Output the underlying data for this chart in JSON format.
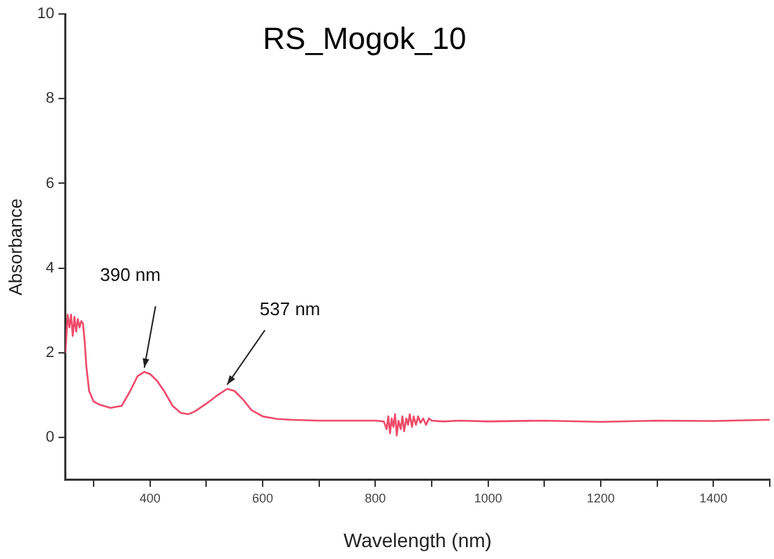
{
  "chart_data": {
    "type": "line",
    "title": "RS_Mogok_10",
    "xlabel": "Wavelength (nm)",
    "ylabel": "Absorbance",
    "xlim": [
      250,
      1500
    ],
    "ylim": [
      -1,
      10
    ],
    "xticks": [
      {
        "value": 300,
        "label": null
      },
      400,
      {
        "value": 500,
        "label": null
      },
      600,
      {
        "value": 700,
        "label": null
      },
      800,
      {
        "value": 900,
        "label": null
      },
      1000,
      {
        "value": 1100,
        "label": null
      },
      1200,
      {
        "value": 1300,
        "label": null
      },
      1400,
      {
        "value": 1500,
        "label": null
      }
    ],
    "yticks": [
      0,
      2,
      4,
      6,
      8,
      10
    ],
    "grid": false,
    "legend": false,
    "marker": "none",
    "line_style": "solid",
    "annotations": [
      {
        "text": "390 nm",
        "x": 390,
        "y": 1.55
      },
      {
        "text": "537 nm",
        "x": 537,
        "y": 1.15
      }
    ],
    "series": [
      {
        "color": "#f04a6a",
        "x": [
          250,
          254,
          257,
          260,
          263,
          266,
          269,
          272,
          275,
          278,
          281,
          284,
          287,
          292,
          300,
          310,
          330,
          350,
          365,
          378,
          390,
          400,
          412,
          425,
          440,
          455,
          468,
          480,
          500,
          520,
          537,
          550,
          565,
          580,
          600,
          625,
          650,
          700,
          750,
          800,
          815,
          820,
          823,
          826,
          829,
          832,
          835,
          838,
          841,
          845,
          848,
          851,
          855,
          858,
          861,
          865,
          868,
          872,
          876,
          880,
          885,
          890,
          895,
          900,
          920,
          950,
          1000,
          1100,
          1200,
          1300,
          1400,
          1500
        ],
        "values": [
          2.0,
          2.9,
          2.6,
          2.9,
          2.4,
          2.85,
          2.5,
          2.8,
          2.6,
          2.75,
          2.7,
          2.3,
          1.7,
          1.1,
          0.85,
          0.78,
          0.7,
          0.75,
          1.1,
          1.45,
          1.55,
          1.5,
          1.35,
          1.1,
          0.75,
          0.58,
          0.55,
          0.62,
          0.8,
          1.0,
          1.15,
          1.1,
          0.9,
          0.65,
          0.5,
          0.44,
          0.42,
          0.4,
          0.4,
          0.4,
          0.38,
          0.2,
          0.5,
          0.1,
          0.45,
          0.25,
          0.55,
          0.05,
          0.4,
          0.2,
          0.5,
          0.15,
          0.45,
          0.3,
          0.55,
          0.25,
          0.5,
          0.3,
          0.5,
          0.35,
          0.45,
          0.3,
          0.45,
          0.4,
          0.38,
          0.4,
          0.38,
          0.4,
          0.37,
          0.4,
          0.39,
          0.42
        ]
      }
    ]
  }
}
